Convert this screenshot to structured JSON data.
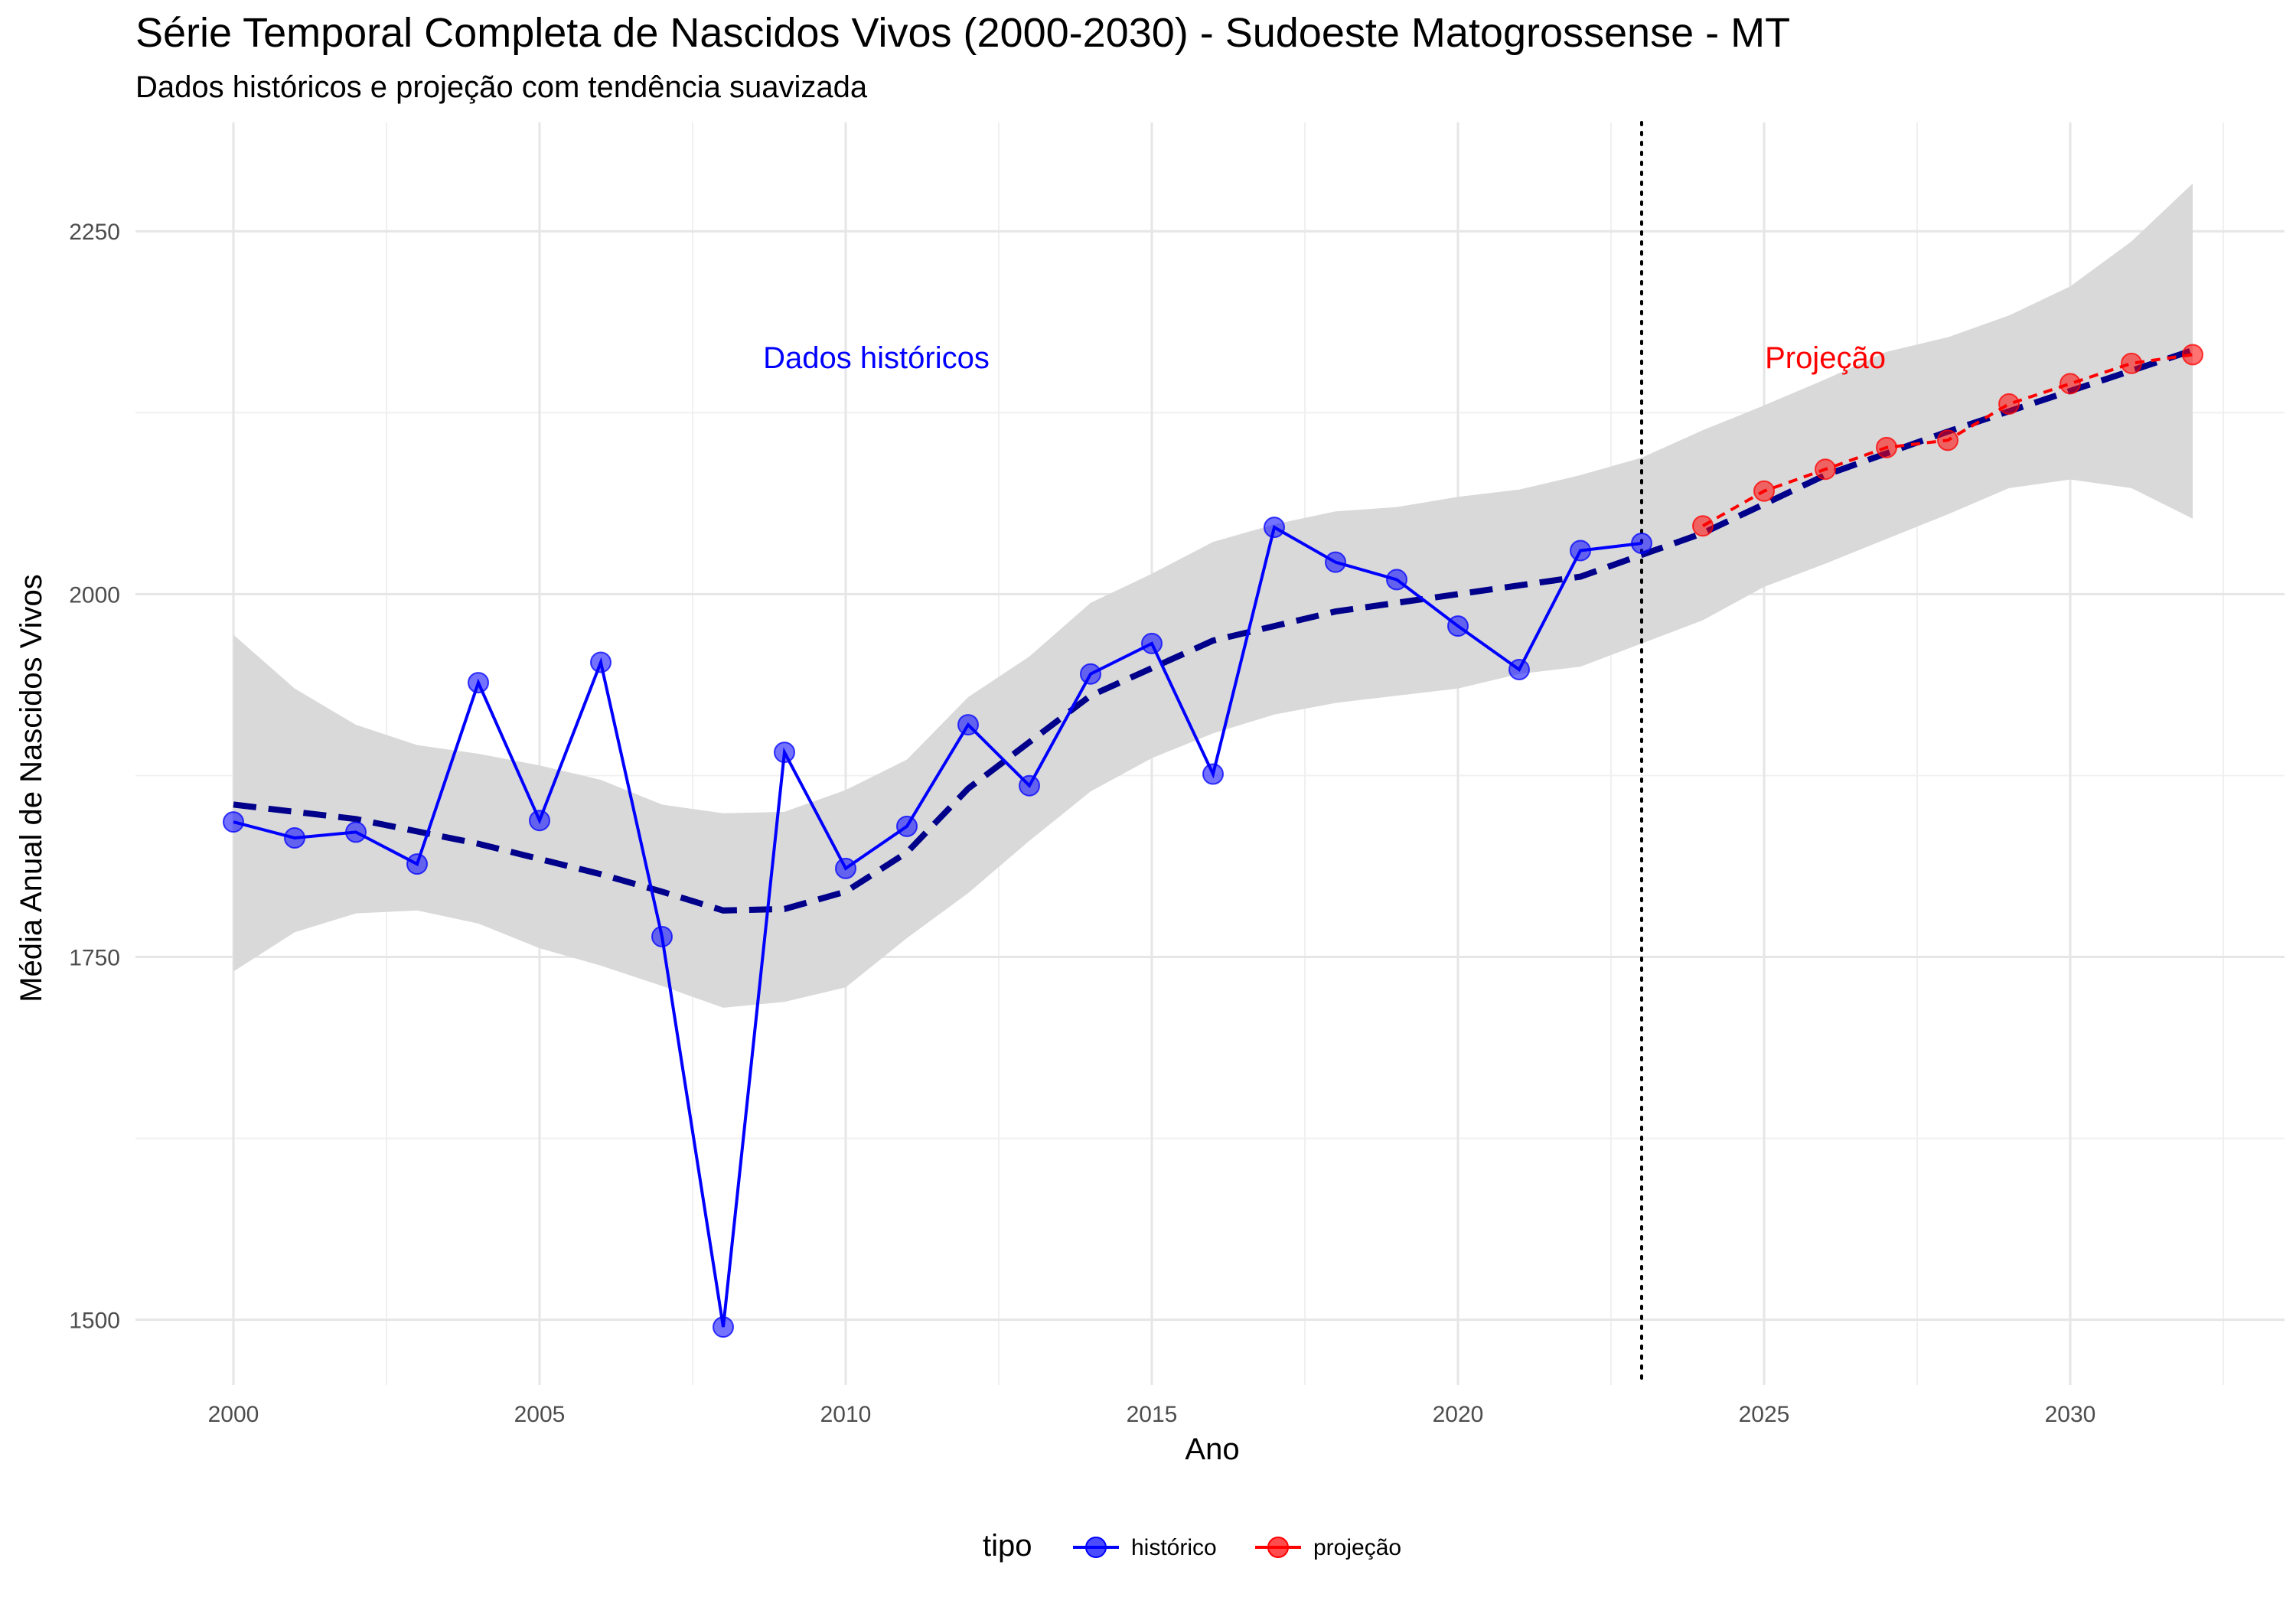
{
  "chart_data": {
    "type": "line",
    "title": "Série Temporal Completa de Nascidos Vivos (2000-2030) -  Sudoeste Matogrossense - MT",
    "subtitle": "Dados históricos e projeção com tendência suavizada",
    "xlabel": "Ano",
    "ylabel": "Média Anual de Nascidos Vivos",
    "xlim": [
      1998.4,
      2033.5
    ],
    "ylim": [
      1455,
      2325
    ],
    "x_ticks": [
      2000,
      2005,
      2010,
      2015,
      2020,
      2025,
      2030
    ],
    "y_ticks": [
      1500,
      1750,
      2000,
      2250
    ],
    "grid": true,
    "legend": {
      "title": "tipo",
      "position": "bottom",
      "entries": [
        {
          "label": "histórico",
          "color": "#0000ff"
        },
        {
          "label": "projeção",
          "color": "#ff0000"
        }
      ]
    },
    "series": [
      {
        "name": "histórico",
        "color": "#0000ff",
        "x": [
          2000,
          2001,
          2002,
          2003,
          2004,
          2005,
          2006,
          2007,
          2008,
          2009,
          2010,
          2011,
          2012,
          2013,
          2014,
          2015,
          2016,
          2017,
          2018,
          2019,
          2020,
          2021,
          2022,
          2023
        ],
        "y": [
          1843,
          1832,
          1836,
          1814,
          1939,
          1844,
          1953,
          1764,
          1495,
          1891,
          1811,
          1840,
          1910,
          1868,
          1945,
          1966,
          1876,
          2046,
          2022,
          2010,
          1978,
          1948,
          2030,
          2035
        ]
      },
      {
        "name": "projeção",
        "color": "#ff0000",
        "x": [
          2024,
          2025,
          2026,
          2027,
          2028,
          2029,
          2030,
          2031,
          2032
        ],
        "y": [
          2047,
          2071,
          2086,
          2101,
          2106,
          2131,
          2145,
          2159,
          2165
        ]
      }
    ],
    "trend": {
      "color": "#00008b",
      "style": "dashed",
      "x": [
        2000,
        2002,
        2004,
        2006,
        2007,
        2008,
        2009,
        2010,
        2011,
        2012,
        2014,
        2016,
        2018,
        2020,
        2022,
        2024,
        2026,
        2028,
        2030,
        2032
      ],
      "y": [
        1855,
        1845,
        1828,
        1807,
        1795,
        1782,
        1783,
        1795,
        1822,
        1866,
        1930,
        1968,
        1988,
        2000,
        2012,
        2042,
        2082,
        2112,
        2140,
        2168
      ]
    },
    "confidence_band": {
      "color": "#d9d9d9",
      "x": [
        2000,
        2001,
        2002,
        2003,
        2004,
        2005,
        2006,
        2007,
        2008,
        2009,
        2010,
        2011,
        2012,
        2013,
        2014,
        2015,
        2016,
        2017,
        2018,
        2019,
        2020,
        2021,
        2022,
        2023,
        2024,
        2025,
        2026,
        2027,
        2028,
        2029,
        2030,
        2031,
        2032
      ],
      "upper": [
        1972,
        1935,
        1910,
        1896,
        1890,
        1882,
        1872,
        1855,
        1849,
        1850,
        1865,
        1886,
        1929,
        1957,
        1994,
        2014,
        2036,
        2048,
        2057,
        2060,
        2067,
        2072,
        2082,
        2094,
        2113,
        2130,
        2148,
        2167,
        2177,
        2192,
        2212,
        2243,
        2283
      ],
      "lower": [
        1740,
        1767,
        1780,
        1782,
        1773,
        1756,
        1744,
        1730,
        1715,
        1719,
        1729,
        1763,
        1794,
        1830,
        1864,
        1887,
        1904,
        1917,
        1925,
        1930,
        1935,
        1945,
        1950,
        1966,
        1982,
        2005,
        2021,
        2038,
        2055,
        2073,
        2079,
        2073,
        2052
      ]
    },
    "vline": {
      "x": 2023,
      "style": "dotted",
      "color": "#000000"
    },
    "annotations": [
      {
        "text": "Dados históricos",
        "x": 2010.5,
        "y": 2163,
        "color": "#0000ff"
      },
      {
        "text": "Projeção",
        "x": 2026,
        "y": 2163,
        "color": "#ff0000"
      }
    ]
  }
}
